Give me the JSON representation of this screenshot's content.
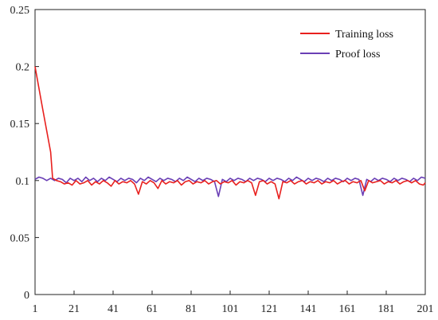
{
  "chart_data": {
    "type": "line",
    "title": "",
    "xlabel": "",
    "ylabel": "",
    "xlim": [
      1,
      201
    ],
    "ylim": [
      0,
      0.25
    ],
    "x_ticks": [
      "1",
      "21",
      "41",
      "61",
      "81",
      "101",
      "121",
      "141",
      "161",
      "181",
      "201"
    ],
    "y_ticks": [
      "0",
      "0.05",
      "0.1",
      "0.15",
      "0.2",
      "0.25"
    ],
    "grid": false,
    "legend": "top-right",
    "series": [
      {
        "name": "Training loss",
        "color": "#e8201e",
        "points": [
          [
            1,
            0.2
          ],
          [
            5,
            0.162
          ],
          [
            9,
            0.125
          ],
          [
            10,
            0.102
          ],
          [
            12,
            0.1
          ],
          [
            14,
            0.099
          ],
          [
            16,
            0.097
          ],
          [
            18,
            0.098
          ],
          [
            20,
            0.096
          ],
          [
            22,
            0.1
          ],
          [
            24,
            0.097
          ],
          [
            26,
            0.098
          ],
          [
            28,
            0.1
          ],
          [
            30,
            0.096
          ],
          [
            32,
            0.099
          ],
          [
            34,
            0.097
          ],
          [
            36,
            0.1
          ],
          [
            38,
            0.098
          ],
          [
            40,
            0.095
          ],
          [
            42,
            0.1
          ],
          [
            44,
            0.097
          ],
          [
            46,
            0.099
          ],
          [
            48,
            0.098
          ],
          [
            50,
            0.1
          ],
          [
            52,
            0.097
          ],
          [
            54,
            0.088
          ],
          [
            56,
            0.099
          ],
          [
            58,
            0.097
          ],
          [
            60,
            0.1
          ],
          [
            62,
            0.098
          ],
          [
            64,
            0.093
          ],
          [
            66,
            0.1
          ],
          [
            68,
            0.097
          ],
          [
            70,
            0.099
          ],
          [
            72,
            0.098
          ],
          [
            74,
            0.1
          ],
          [
            76,
            0.096
          ],
          [
            78,
            0.099
          ],
          [
            80,
            0.1
          ],
          [
            82,
            0.097
          ],
          [
            84,
            0.099
          ],
          [
            86,
            0.098
          ],
          [
            88,
            0.1
          ],
          [
            90,
            0.097
          ],
          [
            92,
            0.099
          ],
          [
            94,
            0.1
          ],
          [
            96,
            0.097
          ],
          [
            98,
            0.099
          ],
          [
            100,
            0.098
          ],
          [
            102,
            0.1
          ],
          [
            104,
            0.096
          ],
          [
            106,
            0.099
          ],
          [
            108,
            0.098
          ],
          [
            110,
            0.1
          ],
          [
            112,
            0.098
          ],
          [
            114,
            0.087
          ],
          [
            116,
            0.099
          ],
          [
            118,
            0.1
          ],
          [
            120,
            0.097
          ],
          [
            122,
            0.099
          ],
          [
            124,
            0.097
          ],
          [
            126,
            0.084
          ],
          [
            128,
            0.099
          ],
          [
            130,
            0.098
          ],
          [
            132,
            0.1
          ],
          [
            134,
            0.097
          ],
          [
            136,
            0.099
          ],
          [
            138,
            0.1
          ],
          [
            140,
            0.097
          ],
          [
            142,
            0.099
          ],
          [
            144,
            0.098
          ],
          [
            146,
            0.1
          ],
          [
            148,
            0.097
          ],
          [
            150,
            0.099
          ],
          [
            152,
            0.098
          ],
          [
            154,
            0.1
          ],
          [
            156,
            0.097
          ],
          [
            158,
            0.099
          ],
          [
            160,
            0.1
          ],
          [
            162,
            0.097
          ],
          [
            164,
            0.099
          ],
          [
            166,
            0.098
          ],
          [
            168,
            0.1
          ],
          [
            170,
            0.091
          ],
          [
            172,
            0.1
          ],
          [
            174,
            0.098
          ],
          [
            176,
            0.099
          ],
          [
            178,
            0.1
          ],
          [
            180,
            0.097
          ],
          [
            182,
            0.099
          ],
          [
            184,
            0.098
          ],
          [
            186,
            0.1
          ],
          [
            188,
            0.097
          ],
          [
            190,
            0.099
          ],
          [
            192,
            0.1
          ],
          [
            194,
            0.098
          ],
          [
            196,
            0.1
          ],
          [
            198,
            0.097
          ],
          [
            200,
            0.096
          ],
          [
            201,
            0.098
          ]
        ]
      },
      {
        "name": "Proof loss",
        "color": "#6a3fb5",
        "points": [
          [
            1,
            0.101
          ],
          [
            3,
            0.103
          ],
          [
            5,
            0.102
          ],
          [
            7,
            0.1
          ],
          [
            9,
            0.102
          ],
          [
            11,
            0.1
          ],
          [
            13,
            0.102
          ],
          [
            15,
            0.101
          ],
          [
            17,
            0.098
          ],
          [
            19,
            0.102
          ],
          [
            21,
            0.1
          ],
          [
            23,
            0.102
          ],
          [
            25,
            0.099
          ],
          [
            27,
            0.103
          ],
          [
            29,
            0.1
          ],
          [
            31,
            0.102
          ],
          [
            33,
            0.099
          ],
          [
            35,
            0.102
          ],
          [
            37,
            0.1
          ],
          [
            39,
            0.103
          ],
          [
            41,
            0.101
          ],
          [
            43,
            0.099
          ],
          [
            45,
            0.102
          ],
          [
            47,
            0.1
          ],
          [
            49,
            0.102
          ],
          [
            51,
            0.101
          ],
          [
            53,
            0.098
          ],
          [
            55,
            0.102
          ],
          [
            57,
            0.1
          ],
          [
            59,
            0.103
          ],
          [
            61,
            0.101
          ],
          [
            63,
            0.099
          ],
          [
            65,
            0.102
          ],
          [
            67,
            0.1
          ],
          [
            69,
            0.102
          ],
          [
            71,
            0.101
          ],
          [
            73,
            0.099
          ],
          [
            75,
            0.102
          ],
          [
            77,
            0.1
          ],
          [
            79,
            0.103
          ],
          [
            81,
            0.101
          ],
          [
            83,
            0.099
          ],
          [
            85,
            0.102
          ],
          [
            87,
            0.1
          ],
          [
            89,
            0.102
          ],
          [
            91,
            0.101
          ],
          [
            93,
            0.099
          ],
          [
            95,
            0.086
          ],
          [
            97,
            0.101
          ],
          [
            99,
            0.099
          ],
          [
            101,
            0.102
          ],
          [
            103,
            0.1
          ],
          [
            105,
            0.102
          ],
          [
            107,
            0.101
          ],
          [
            109,
            0.099
          ],
          [
            111,
            0.102
          ],
          [
            113,
            0.1
          ],
          [
            115,
            0.102
          ],
          [
            117,
            0.101
          ],
          [
            119,
            0.099
          ],
          [
            121,
            0.102
          ],
          [
            123,
            0.1
          ],
          [
            125,
            0.102
          ],
          [
            127,
            0.101
          ],
          [
            129,
            0.099
          ],
          [
            131,
            0.102
          ],
          [
            133,
            0.1
          ],
          [
            135,
            0.103
          ],
          [
            137,
            0.101
          ],
          [
            139,
            0.099
          ],
          [
            141,
            0.102
          ],
          [
            143,
            0.1
          ],
          [
            145,
            0.102
          ],
          [
            147,
            0.101
          ],
          [
            149,
            0.099
          ],
          [
            151,
            0.102
          ],
          [
            153,
            0.1
          ],
          [
            155,
            0.102
          ],
          [
            157,
            0.101
          ],
          [
            159,
            0.099
          ],
          [
            161,
            0.102
          ],
          [
            163,
            0.1
          ],
          [
            165,
            0.102
          ],
          [
            167,
            0.101
          ],
          [
            169,
            0.087
          ],
          [
            171,
            0.101
          ],
          [
            173,
            0.099
          ],
          [
            175,
            0.102
          ],
          [
            177,
            0.1
          ],
          [
            179,
            0.102
          ],
          [
            181,
            0.101
          ],
          [
            183,
            0.099
          ],
          [
            185,
            0.102
          ],
          [
            187,
            0.1
          ],
          [
            189,
            0.102
          ],
          [
            191,
            0.101
          ],
          [
            193,
            0.099
          ],
          [
            195,
            0.102
          ],
          [
            197,
            0.1
          ],
          [
            199,
            0.103
          ],
          [
            201,
            0.102
          ]
        ]
      }
    ]
  }
}
